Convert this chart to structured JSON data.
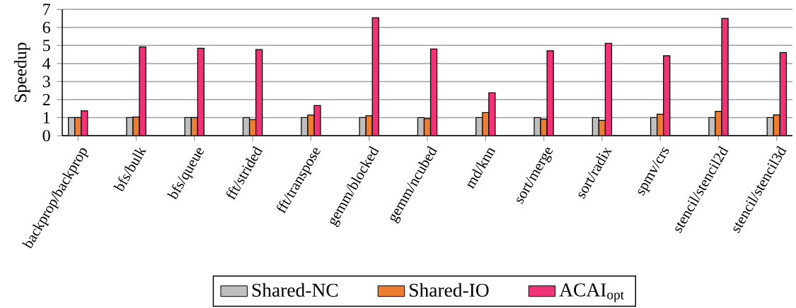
{
  "chart_data": {
    "type": "bar",
    "ylabel": "Speedup",
    "categories": [
      "backprop/backprop",
      "bfs/bulk",
      "bfs/queue",
      "fft/strided",
      "fft/transpose",
      "gemm/blocked",
      "gemm/ncubed",
      "md/knn",
      "sort/merge",
      "sort/radix",
      "spmv/crs",
      "stencil/stencil2d",
      "stencil/stencil3d"
    ],
    "series": [
      {
        "name": "Shared-NC",
        "color": "#bfbfbf",
        "values": [
          1.0,
          1.0,
          1.0,
          1.0,
          1.0,
          1.0,
          1.0,
          1.0,
          1.0,
          1.0,
          1.0,
          1.0,
          1.0
        ]
      },
      {
        "name": "Shared-IO",
        "color": "#ed7d31",
        "values": [
          1.0,
          1.03,
          1.0,
          0.89,
          1.14,
          1.1,
          0.95,
          1.28,
          0.92,
          0.85,
          1.19,
          1.35,
          1.15
        ]
      },
      {
        "name": "ACAI$_{opt}$",
        "color": "#ee3377",
        "values": [
          1.38,
          4.92,
          4.84,
          4.77,
          1.67,
          6.54,
          4.8,
          2.38,
          4.71,
          5.12,
          4.43,
          6.5,
          4.61
        ]
      }
    ],
    "ylim": [
      0,
      7
    ],
    "yticks": [
      0,
      1,
      2,
      3,
      4,
      5,
      6,
      7
    ],
    "grid": "y",
    "legend": "bottom"
  }
}
